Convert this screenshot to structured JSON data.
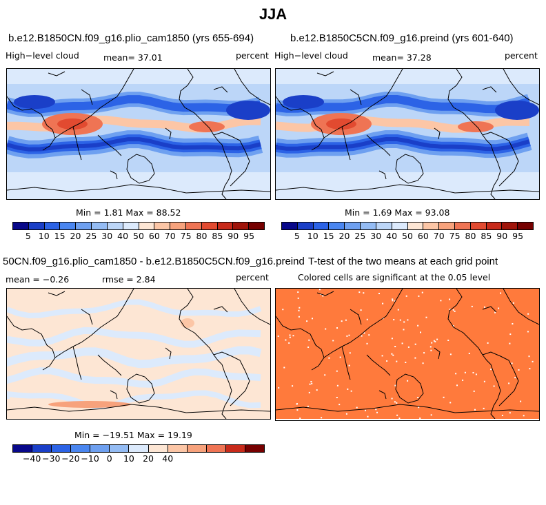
{
  "main_title": "JJA",
  "panel1": {
    "title": "b.e12.B1850CN.f09_g16.plio_cam1850 (yrs 655-694)",
    "left_label": "High−level cloud",
    "mean_label": "mean=  37.01",
    "units": "percent",
    "minmax": "Min =   1.81 Max =  88.52"
  },
  "panel2": {
    "title": "b.e12.B1850C5CN.f09_g16.preind (yrs 601-640)",
    "left_label": "High−level cloud",
    "mean_label": "mean=  37.28",
    "units": "percent",
    "minmax": "Min =   1.69 Max =  93.08"
  },
  "panel3": {
    "title": "50CN.f09_g16.plio_cam1850 - b.e12.B1850C5CN.f09_g16.preind",
    "mean_label": "mean = −0.26",
    "rmse_label": "rmse =   2.84",
    "units": "percent",
    "minmax": "Min = −19.51 Max =  19.19"
  },
  "panel4": {
    "title": "T-test of the two means at each grid point",
    "subtitle": "Colored cells are significant at the 0.05 level",
    "fill_color": "#ff7a3c"
  },
  "colorbar_abs": {
    "ticks": [
      "5",
      "10",
      "15",
      "20",
      "25",
      "30",
      "40",
      "50",
      "60",
      "70",
      "75",
      "80",
      "85",
      "90",
      "95"
    ],
    "colors": [
      "#08088a",
      "#1a3fc8",
      "#2c63e6",
      "#4a86f0",
      "#6ea0f0",
      "#94bcf4",
      "#bcd6f8",
      "#dceafc",
      "#fde6d4",
      "#fcc6a6",
      "#f7a27c",
      "#ef7454",
      "#e24a30",
      "#c82a1a",
      "#a0140a",
      "#760000"
    ]
  },
  "colorbar_diff": {
    "ticks": [
      "−40",
      "−30",
      "−20",
      "−10",
      "0",
      "10",
      "20",
      "40"
    ],
    "colors": [
      "#08088a",
      "#1a3fc8",
      "#2c63e6",
      "#4a86f0",
      "#6ea0f0",
      "#94bcf4",
      "#dceafc",
      "#fde6d4",
      "#fcc6a6",
      "#f7a27c",
      "#ef7454",
      "#c82a1a",
      "#760000"
    ]
  }
}
